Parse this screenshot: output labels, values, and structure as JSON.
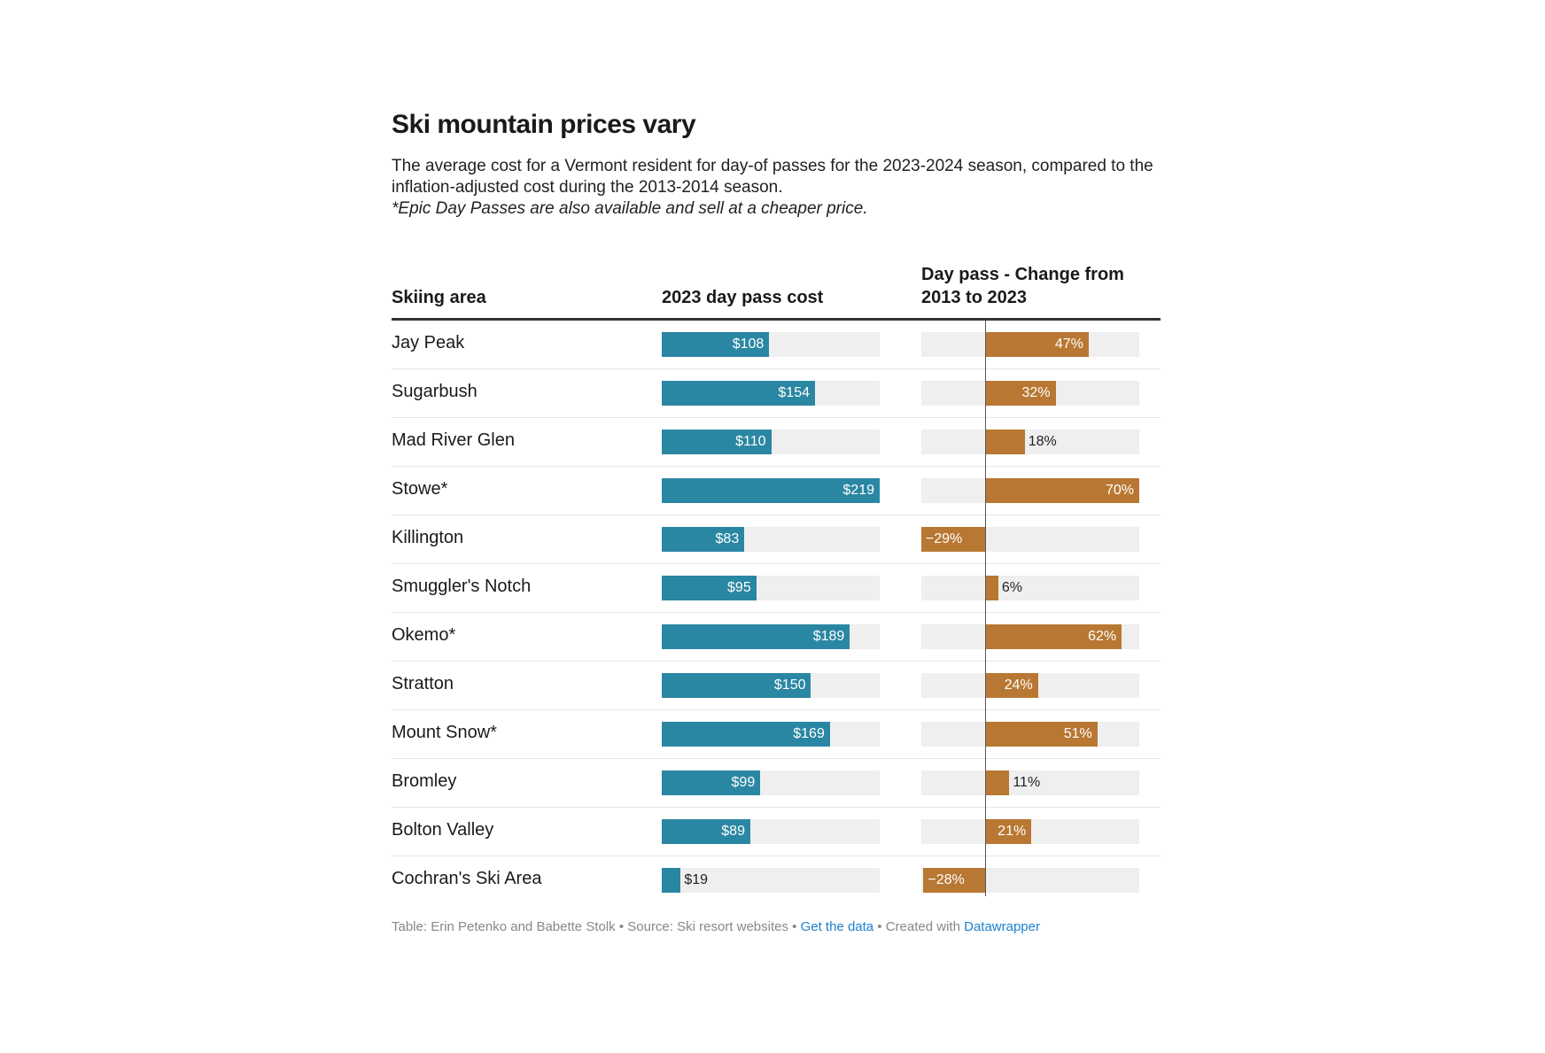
{
  "chart_data": {
    "type": "table",
    "title": "Ski mountain prices vary",
    "description": "The average cost for a Vermont resident for day-of passes for the 2023-2024 season, compared to the inflation-adjusted cost during the 2013-2014 season.",
    "note": "*Epic Day Passes are also available and sell at a cheaper price.",
    "columns": [
      "Skiing area",
      "2023 day pass cost",
      "Day pass - Change from 2013 to 2023"
    ],
    "cost_range": [
      0,
      219
    ],
    "change_range": [
      -29,
      70
    ],
    "colors": {
      "cost": "#2a87a3",
      "change": "#b87833",
      "track": "#efefef"
    },
    "rows": [
      {
        "area": "Jay Peak",
        "cost": 108,
        "cost_label": "$108",
        "change": 47,
        "change_label": "47%"
      },
      {
        "area": "Sugarbush",
        "cost": 154,
        "cost_label": "$154",
        "change": 32,
        "change_label": "32%"
      },
      {
        "area": "Mad River Glen",
        "cost": 110,
        "cost_label": "$110",
        "change": 18,
        "change_label": "18%"
      },
      {
        "area": "Stowe*",
        "cost": 219,
        "cost_label": "$219",
        "change": 70,
        "change_label": "70%"
      },
      {
        "area": "Killington",
        "cost": 83,
        "cost_label": "$83",
        "change": -29,
        "change_label": "−29%"
      },
      {
        "area": "Smuggler's Notch",
        "cost": 95,
        "cost_label": "$95",
        "change": 6,
        "change_label": "6%"
      },
      {
        "area": "Okemo*",
        "cost": 189,
        "cost_label": "$189",
        "change": 62,
        "change_label": "62%"
      },
      {
        "area": "Stratton",
        "cost": 150,
        "cost_label": "$150",
        "change": 24,
        "change_label": "24%"
      },
      {
        "area": "Mount Snow*",
        "cost": 169,
        "cost_label": "$169",
        "change": 51,
        "change_label": "51%"
      },
      {
        "area": "Bromley",
        "cost": 99,
        "cost_label": "$99",
        "change": 11,
        "change_label": "11%"
      },
      {
        "area": "Bolton Valley",
        "cost": 89,
        "cost_label": "$89",
        "change": 21,
        "change_label": "21%"
      },
      {
        "area": "Cochran's Ski Area",
        "cost": 19,
        "cost_label": "$19",
        "change": -28,
        "change_label": "−28%"
      }
    ]
  },
  "footer": {
    "credit": "Table: Erin Petenko and Babette Stolk • Source: Ski resort websites • ",
    "get_data": "Get the data",
    "created": " • Created with ",
    "datawrapper": "Datawrapper"
  }
}
